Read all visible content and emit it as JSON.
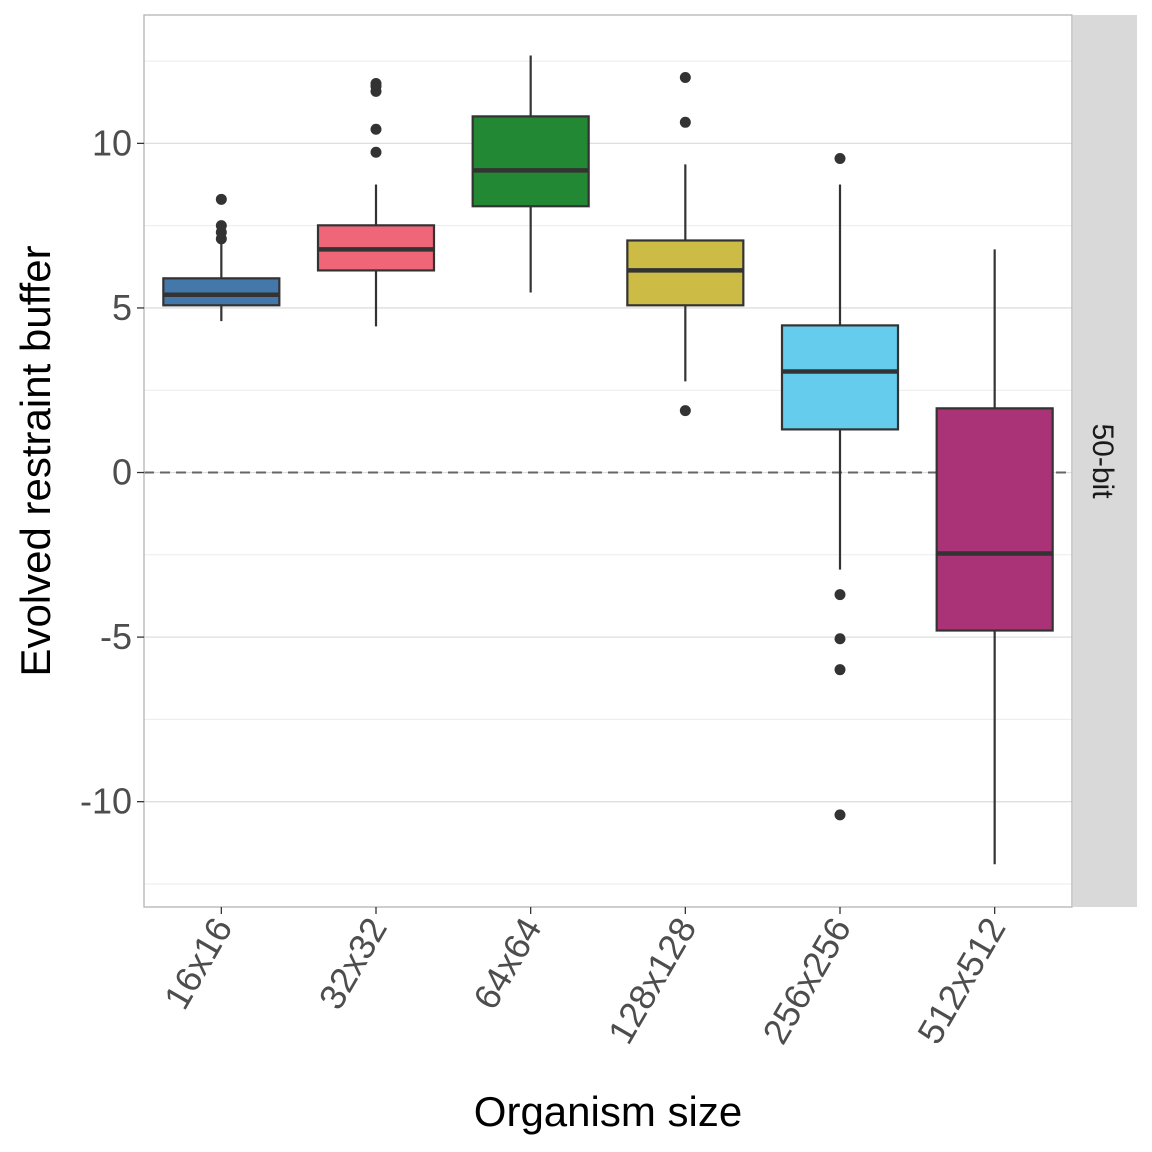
{
  "chart_data": {
    "type": "box",
    "title": "",
    "xlabel": "Organism size",
    "ylabel": "Evolved restraint buffer",
    "facet_label": "50-bit",
    "ylim": [
      -13.2,
      13.9
    ],
    "yticks": [
      -10,
      -5,
      0,
      5,
      10
    ],
    "ytick_labels": [
      "-10",
      "-5",
      "0",
      "5",
      "10"
    ],
    "reference_line": 0,
    "grid": true,
    "categories": [
      "16x16",
      "32x32",
      "64x64",
      "128x128",
      "256x256",
      "512x512"
    ],
    "colors": [
      "#4477AA",
      "#EE6677",
      "#228833",
      "#CCBB44",
      "#66CCEE",
      "#AA3377"
    ],
    "boxes": [
      {
        "low": 4.6,
        "q1": 5.08,
        "median": 5.4,
        "q3": 5.9,
        "high": 7.0,
        "outliers": [
          7.1,
          7.3,
          7.5,
          8.3
        ]
      },
      {
        "low": 4.44,
        "q1": 6.14,
        "median": 6.78,
        "q3": 7.51,
        "high": 8.75,
        "outliers": [
          9.73,
          10.43,
          11.58,
          11.73,
          11.82
        ]
      },
      {
        "low": 5.47,
        "q1": 8.09,
        "median": 9.18,
        "q3": 10.82,
        "high": 12.67,
        "outliers": []
      },
      {
        "low": 2.77,
        "q1": 5.08,
        "median": 6.14,
        "q3": 7.05,
        "high": 9.36,
        "outliers": [
          1.88,
          10.64,
          12.0
        ]
      },
      {
        "low": -2.95,
        "q1": 1.31,
        "median": 3.07,
        "q3": 4.47,
        "high": 8.75,
        "outliers": [
          9.54,
          -3.71,
          -5.05,
          -5.99,
          -10.4
        ]
      },
      {
        "low": -11.9,
        "q1": -4.8,
        "median": -2.46,
        "q3": 1.95,
        "high": 6.78,
        "outliers": []
      }
    ]
  }
}
